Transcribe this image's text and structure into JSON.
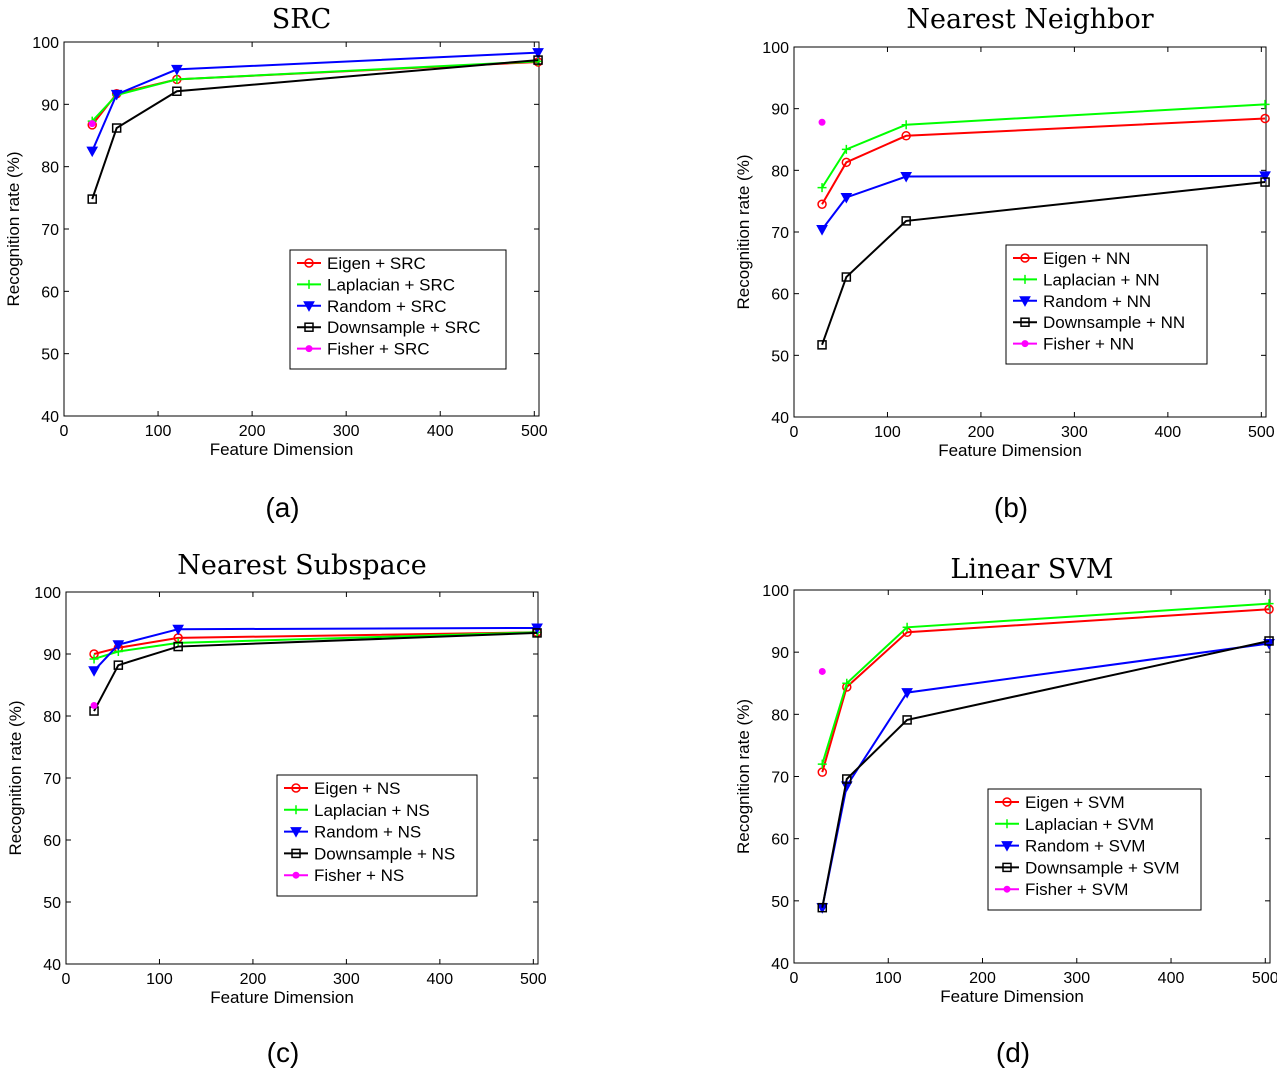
{
  "chart_data": [
    {
      "type": "line",
      "title": "SRC",
      "caption": "(a)",
      "xlabel": "Feature Dimension",
      "ylabel": "Recognition rate (%)",
      "xlim": [
        0,
        505
      ],
      "ylim": [
        40,
        100
      ],
      "xticks": [
        0,
        100,
        200,
        300,
        400,
        500
      ],
      "yticks": [
        40,
        50,
        60,
        70,
        80,
        90,
        100
      ],
      "legend_position": "center-right",
      "series": [
        {
          "name": "Eigen + SRC",
          "color": "#ff0000",
          "marker": "circle",
          "x": [
            30,
            56,
            120,
            504
          ],
          "y": [
            86.7,
            91.7,
            94.0,
            96.8
          ]
        },
        {
          "name": "Laplacian + SRC",
          "color": "#00ff00",
          "marker": "plus",
          "x": [
            30,
            56,
            120,
            504
          ],
          "y": [
            87.3,
            91.5,
            94.0,
            96.9
          ]
        },
        {
          "name": "Random + SRC",
          "color": "#0000ff",
          "marker": "triangle-down",
          "x": [
            30,
            56,
            120,
            504
          ],
          "y": [
            82.5,
            91.6,
            95.6,
            98.3
          ]
        },
        {
          "name": "Downsample + SRC",
          "color": "#000000",
          "marker": "square",
          "x": [
            30,
            56,
            120,
            504
          ],
          "y": [
            74.8,
            86.2,
            92.1,
            97.1
          ]
        },
        {
          "name": "Fisher + SRC",
          "color": "#ff00ff",
          "marker": "dot",
          "x": [
            30
          ],
          "y": [
            86.9
          ]
        }
      ]
    },
    {
      "type": "line",
      "title": "Nearest Neighbor",
      "caption": "(b)",
      "xlabel": "Feature Dimension",
      "ylabel": "Recognition rate (%)",
      "xlim": [
        0,
        505
      ],
      "ylim": [
        40,
        100
      ],
      "xticks": [
        0,
        100,
        200,
        300,
        400,
        500
      ],
      "yticks": [
        40,
        50,
        60,
        70,
        80,
        90,
        100
      ],
      "legend_position": "center-right",
      "series": [
        {
          "name": "Eigen + NN",
          "color": "#ff0000",
          "marker": "circle",
          "x": [
            30,
            56,
            120,
            504
          ],
          "y": [
            74.5,
            81.3,
            85.6,
            88.4
          ]
        },
        {
          "name": "Laplacian + NN",
          "color": "#00ff00",
          "marker": "plus",
          "x": [
            30,
            56,
            120,
            504
          ],
          "y": [
            77.2,
            83.4,
            87.4,
            90.7
          ]
        },
        {
          "name": "Random + NN",
          "color": "#0000ff",
          "marker": "triangle-down",
          "x": [
            30,
            56,
            120,
            504
          ],
          "y": [
            70.4,
            75.6,
            79.0,
            79.1
          ]
        },
        {
          "name": "Downsample + NN",
          "color": "#000000",
          "marker": "square",
          "x": [
            30,
            56,
            120,
            504
          ],
          "y": [
            51.7,
            62.7,
            71.8,
            78.1
          ]
        },
        {
          "name": "Fisher + NN",
          "color": "#ff00ff",
          "marker": "dot",
          "x": [
            30
          ],
          "y": [
            87.8
          ]
        }
      ]
    },
    {
      "type": "line",
      "title": "Nearest Subspace",
      "caption": "(c)",
      "xlabel": "Feature Dimension",
      "ylabel": "Recognition rate (%)",
      "xlim": [
        0,
        505
      ],
      "ylim": [
        40,
        100
      ],
      "xticks": [
        0,
        100,
        200,
        300,
        400,
        500
      ],
      "yticks": [
        40,
        50,
        60,
        70,
        80,
        90,
        100
      ],
      "legend_position": "lower-right",
      "series": [
        {
          "name": "Eigen + NS",
          "color": "#ff0000",
          "marker": "circle",
          "x": [
            30,
            56,
            120,
            504
          ],
          "y": [
            90.0,
            91.0,
            92.6,
            93.5
          ]
        },
        {
          "name": "Laplacian + NS",
          "color": "#00ff00",
          "marker": "plus",
          "x": [
            30,
            56,
            120,
            504
          ],
          "y": [
            89.2,
            90.4,
            91.8,
            93.5
          ]
        },
        {
          "name": "Random + NS",
          "color": "#0000ff",
          "marker": "triangle-down",
          "x": [
            30,
            56,
            120,
            504
          ],
          "y": [
            87.3,
            91.5,
            94.0,
            94.2
          ]
        },
        {
          "name": "Downsample + NS",
          "color": "#000000",
          "marker": "square",
          "x": [
            30,
            56,
            120,
            504
          ],
          "y": [
            80.8,
            88.2,
            91.2,
            93.4
          ]
        },
        {
          "name": "Fisher + NS",
          "color": "#ff00ff",
          "marker": "dot",
          "x": [
            30
          ],
          "y": [
            81.7
          ]
        }
      ]
    },
    {
      "type": "line",
      "title": "Linear SVM",
      "caption": "(d)",
      "xlabel": "Feature Dimension",
      "ylabel": "Recognition rate (%)",
      "xlim": [
        0,
        505
      ],
      "ylim": [
        40,
        100
      ],
      "xticks": [
        0,
        100,
        200,
        300,
        400,
        500
      ],
      "yticks": [
        40,
        50,
        60,
        70,
        80,
        90,
        100
      ],
      "legend_position": "lower-right",
      "series": [
        {
          "name": "Eigen + SVM",
          "color": "#ff0000",
          "marker": "circle",
          "x": [
            30,
            56,
            120,
            504
          ],
          "y": [
            70.7,
            84.4,
            93.2,
            96.9
          ]
        },
        {
          "name": "Laplacian + SVM",
          "color": "#00ff00",
          "marker": "plus",
          "x": [
            30,
            56,
            120,
            504
          ],
          "y": [
            72.0,
            85.0,
            94.0,
            97.8
          ]
        },
        {
          "name": "Random + SVM",
          "color": "#0000ff",
          "marker": "triangle-down",
          "x": [
            30,
            56,
            120,
            504
          ],
          "y": [
            48.9,
            68.5,
            83.5,
            91.4
          ]
        },
        {
          "name": "Downsample + SVM",
          "color": "#000000",
          "marker": "square",
          "x": [
            30,
            56,
            120,
            504
          ],
          "y": [
            48.9,
            69.6,
            79.1,
            91.8
          ]
        },
        {
          "name": "Fisher + SVM",
          "color": "#ff00ff",
          "marker": "dot",
          "x": [
            30
          ],
          "y": [
            86.9
          ]
        }
      ]
    }
  ]
}
